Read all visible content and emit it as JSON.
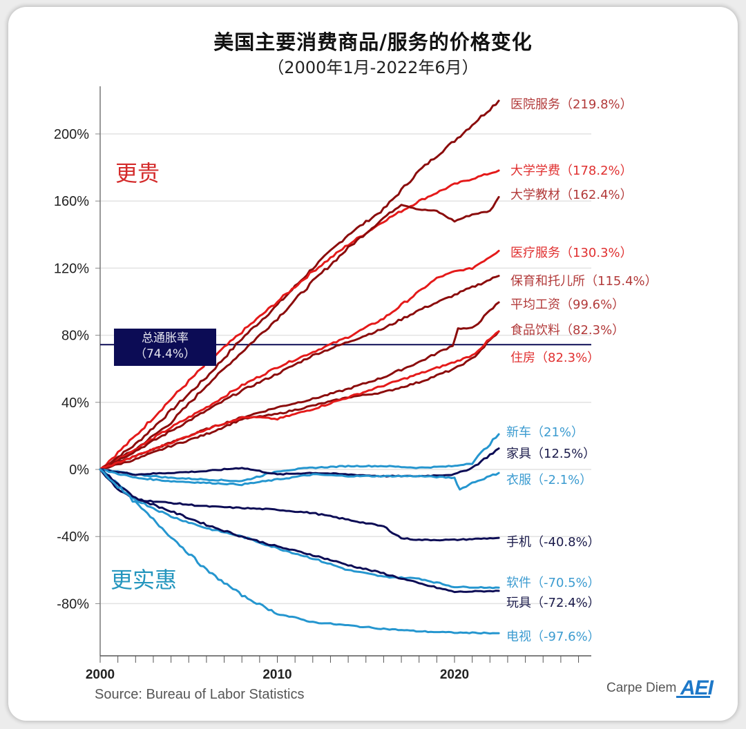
{
  "chart_data": {
    "type": "line",
    "title": "美国主要消费商品/服务的价格变化",
    "subtitle": "（2000年1月-2022年6月）",
    "xlabel": "",
    "ylabel": "",
    "xlim": [
      2000,
      2027.5
    ],
    "ylim": [
      -110,
      230
    ],
    "grid": true,
    "x_ticks": [
      2000,
      2010,
      2020
    ],
    "x_tick_labels": [
      "2000",
      "2010",
      "2020"
    ],
    "y_ticks": [
      200,
      160,
      120,
      80,
      40,
      0,
      -40,
      -80
    ],
    "y_tick_labels": [
      "200%",
      "160%",
      "120%",
      "80%",
      "40%",
      "0%",
      "-40%",
      "-80%"
    ],
    "zone_labels": {
      "up": "更贵",
      "down": "更实惠"
    },
    "reference_line": {
      "name": "总通胀率",
      "value": 74.4,
      "label_line1": "总通胀率",
      "label_line2": "（74.4%）",
      "color": "#0c0c55"
    },
    "legend_placement": "right (direct labels at line ends)",
    "series": [
      {
        "name": "医院服务",
        "final": 219.8,
        "label": "医院服务（219.8%）",
        "color": "#8b0c0c",
        "label_color": "#b23a3a",
        "x": [
          2000,
          2002,
          2004,
          2006,
          2008,
          2010,
          2012,
          2014,
          2016,
          2018,
          2020,
          2022.5
        ],
        "values": [
          0,
          15,
          35,
          55,
          78,
          98,
          120,
          140,
          155,
          178,
          196,
          219.8
        ]
      },
      {
        "name": "大学学费",
        "final": 178.2,
        "label": "大学学费（178.2%）",
        "color": "#e41a1a",
        "label_color": "#e03030",
        "x": [
          2000,
          2002,
          2004,
          2006,
          2008,
          2010,
          2012,
          2014,
          2016,
          2018,
          2020,
          2022.5
        ],
        "values": [
          0,
          20,
          42,
          63,
          82,
          100,
          118,
          134,
          148,
          160,
          170,
          178.2
        ]
      },
      {
        "name": "大学教材",
        "final": 162.4,
        "label": "大学教材（162.4%）",
        "color": "#8b0c0c",
        "label_color": "#b23a3a",
        "x": [
          2000,
          2002,
          2004,
          2006,
          2007,
          2008,
          2010,
          2012,
          2014,
          2016,
          2017,
          2018,
          2019,
          2020,
          2021,
          2022,
          2022.5
        ],
        "values": [
          0,
          12,
          28,
          50,
          60,
          70,
          90,
          112,
          132,
          150,
          158,
          155,
          154,
          148,
          152,
          154,
          162.4
        ]
      },
      {
        "name": "医疗服务",
        "final": 130.3,
        "label": "医疗服务（130.3%）",
        "color": "#e41a1a",
        "label_color": "#e03030",
        "x": [
          2000,
          2002,
          2004,
          2006,
          2008,
          2010,
          2012,
          2014,
          2016,
          2018,
          2019,
          2020,
          2021,
          2022.5
        ],
        "values": [
          0,
          12,
          25,
          37,
          50,
          61,
          70,
          79,
          90,
          106,
          114,
          118,
          120,
          130.3
        ]
      },
      {
        "name": "保育和托儿所",
        "final": 115.4,
        "label": "保育和托儿所（115.4%）",
        "color": "#8b0c0c",
        "label_color": "#b23a3a",
        "x": [
          2000,
          2002,
          2004,
          2006,
          2008,
          2010,
          2012,
          2014,
          2016,
          2018,
          2020,
          2022.5
        ],
        "values": [
          0,
          11,
          23,
          35,
          47,
          57,
          68,
          76,
          84,
          95,
          104,
          115.4
        ]
      },
      {
        "name": "平均工资",
        "final": 99.6,
        "label": "平均工资（99.6%）",
        "color": "#8b0c0c",
        "label_color": "#b23a3a",
        "x": [
          2000,
          2002,
          2004,
          2006,
          2008,
          2010,
          2012,
          2014,
          2016,
          2018,
          2019.9,
          2020.2,
          2021,
          2022.5
        ],
        "values": [
          0,
          8,
          16,
          24,
          31,
          37,
          42,
          48,
          55,
          64,
          74,
          84,
          84,
          99.6
        ]
      },
      {
        "name": "食品饮料",
        "final": 82.3,
        "label": "食品饮料（82.3%）",
        "color": "#8b0c0c",
        "label_color": "#b23a3a",
        "x": [
          2000,
          2002,
          2004,
          2006,
          2008,
          2010,
          2012,
          2014,
          2016,
          2018,
          2020,
          2021,
          2022.5
        ],
        "values": [
          0,
          6,
          14,
          21,
          30,
          33,
          38,
          43,
          46,
          52,
          60,
          66,
          82.3
        ]
      },
      {
        "name": "住房",
        "final": 82.3,
        "label": "住房（82.3%）",
        "color": "#e41a1a",
        "label_color": "#e03030",
        "x": [
          2000,
          2002,
          2004,
          2006,
          2008,
          2009,
          2010,
          2012,
          2014,
          2016,
          2018,
          2020,
          2021,
          2022.5
        ],
        "values": [
          0,
          8,
          16,
          24,
          31,
          31,
          30,
          36,
          43,
          50,
          57,
          64,
          68,
          82.3
        ]
      },
      {
        "name": "新车",
        "final": 21,
        "label": "新车（21%）",
        "color": "#2596cf",
        "label_color": "#3b9bd0",
        "x": [
          2000,
          2002,
          2004,
          2006,
          2008,
          2010,
          2012,
          2014,
          2016,
          2018,
          2020,
          2021,
          2022.5
        ],
        "values": [
          0,
          -3,
          -5,
          -6,
          -7,
          -1,
          1,
          2,
          2,
          1,
          2,
          4,
          21
        ]
      },
      {
        "name": "家具",
        "final": 12.5,
        "label": "家具（12.5%）",
        "color": "#0c0c55",
        "label_color": "#1a1a4a",
        "x": [
          2000,
          2002,
          2004,
          2006,
          2008,
          2009,
          2010,
          2012,
          2014,
          2016,
          2018,
          2020,
          2021,
          2022.5
        ],
        "values": [
          0,
          -3,
          -2,
          -1,
          1,
          -1,
          -3,
          -2,
          -3,
          -4,
          -4,
          -3,
          1,
          12.5
        ]
      },
      {
        "name": "衣服",
        "final": -2.1,
        "label": "衣服（-2.1%）",
        "color": "#2596cf",
        "label_color": "#3b9bd0",
        "x": [
          2000,
          2002,
          2004,
          2006,
          2008,
          2010,
          2012,
          2014,
          2016,
          2018,
          2020,
          2020.3,
          2021,
          2022.5
        ],
        "values": [
          0,
          -5,
          -7,
          -8,
          -9,
          -6,
          -3,
          -4,
          -4,
          -4,
          -5,
          -12,
          -8,
          -2.1
        ]
      },
      {
        "name": "手机",
        "final": -40.8,
        "label": "手机（-40.8%）",
        "color": "#0c0c55",
        "label_color": "#1a1a4a",
        "x": [
          2000,
          2001,
          2002,
          2004,
          2006,
          2008,
          2010,
          2012,
          2014,
          2016,
          2017,
          2018,
          2020,
          2022.5
        ],
        "values": [
          0,
          -12,
          -18,
          -20,
          -22,
          -23,
          -24,
          -26,
          -30,
          -34,
          -41,
          -42,
          -42,
          -40.8
        ]
      },
      {
        "name": "软件",
        "final": -70.5,
        "label": "软件（-70.5%）",
        "color": "#2596cf",
        "label_color": "#3b9bd0",
        "x": [
          2000,
          2002,
          2004,
          2006,
          2008,
          2010,
          2012,
          2014,
          2016,
          2018,
          2020,
          2022.5
        ],
        "values": [
          0,
          -18,
          -28,
          -35,
          -40,
          -47,
          -53,
          -60,
          -64,
          -65,
          -70,
          -70.5
        ]
      },
      {
        "name": "玩具",
        "final": -72.4,
        "label": "玩具（-72.4%）",
        "color": "#0c0c55",
        "label_color": "#1a1a4a",
        "x": [
          2000,
          2002,
          2004,
          2006,
          2008,
          2010,
          2012,
          2014,
          2016,
          2018,
          2020,
          2022.5
        ],
        "values": [
          0,
          -17,
          -25,
          -33,
          -40,
          -46,
          -51,
          -57,
          -62,
          -68,
          -73,
          -72.4
        ]
      },
      {
        "name": "电视",
        "final": -97.6,
        "label": "电视（-97.6%）",
        "color": "#2596cf",
        "label_color": "#3b9bd0",
        "x": [
          2000,
          2002,
          2004,
          2006,
          2008,
          2010,
          2012,
          2014,
          2016,
          2018,
          2020,
          2022.5
        ],
        "values": [
          0,
          -20,
          -40,
          -60,
          -75,
          -86,
          -91,
          -93,
          -95,
          -96.5,
          -97.3,
          -97.6
        ]
      }
    ]
  },
  "footer": {
    "source": "Source: Bureau of Labor Statistics",
    "brand_text": "Carpe Diem",
    "brand_logo": "AEI"
  }
}
